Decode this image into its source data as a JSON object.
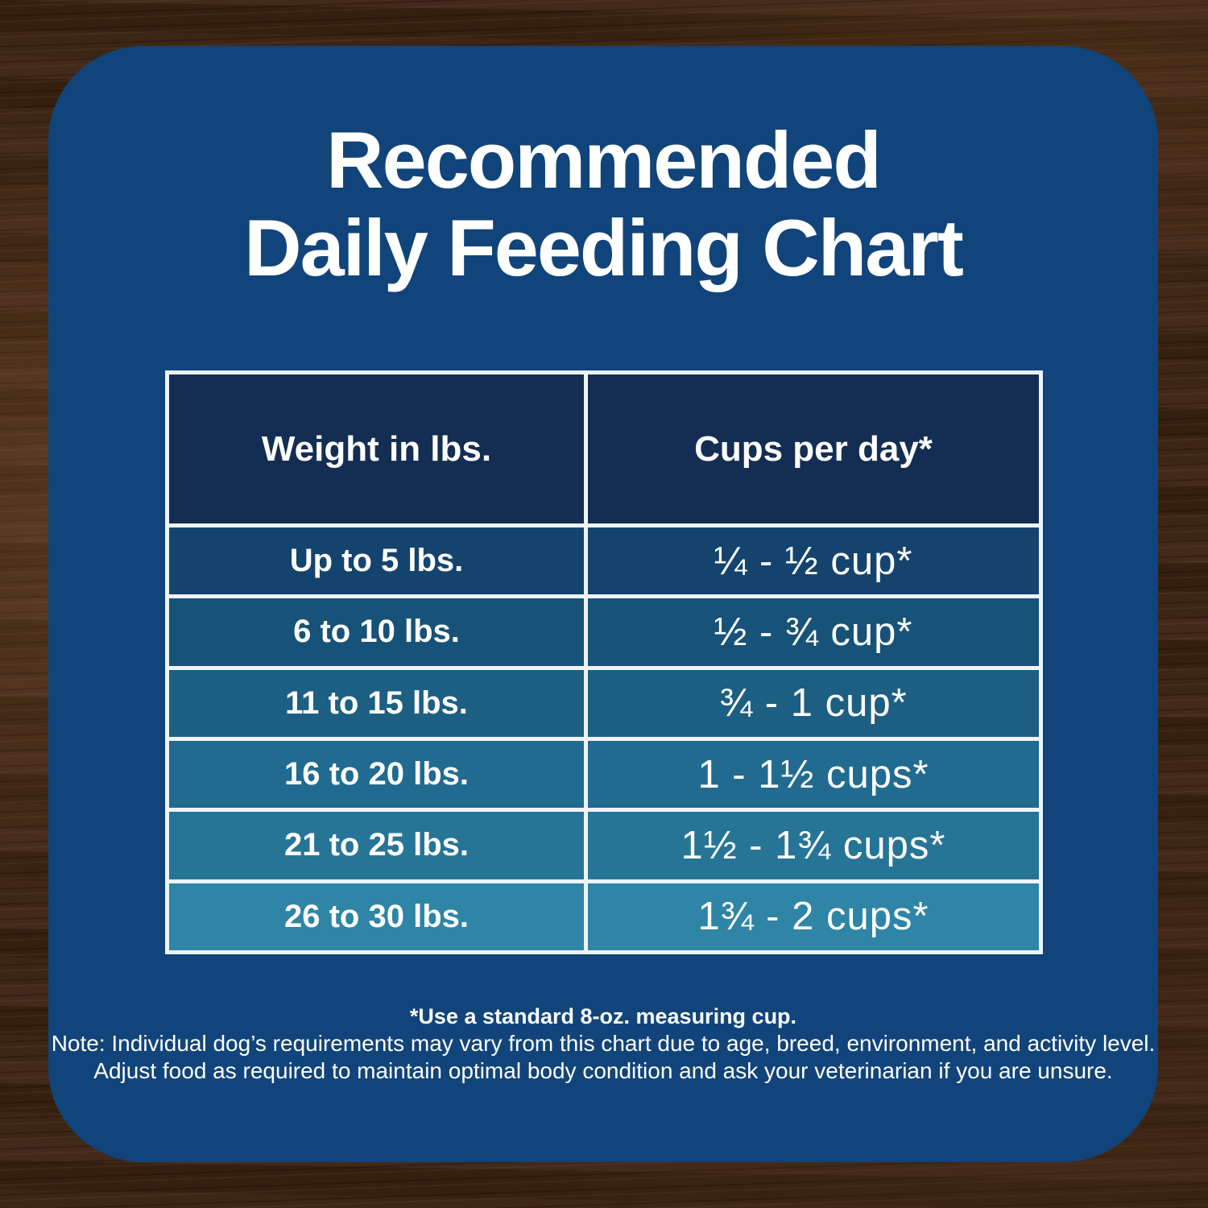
{
  "theme": {
    "card_bg": "#11447a",
    "header_bg": "#132e52",
    "row_colors": [
      "#14446e",
      "#175278",
      "#1c5f83",
      "#216b90",
      "#267597",
      "#2e85a6"
    ],
    "border_color": "#eef3f8",
    "text_color": "#ffffff",
    "wood_base": "#35200f"
  },
  "title": {
    "line1": "Recommended",
    "line2": "Daily Feeding Chart"
  },
  "table": {
    "headers": [
      "Weight in lbs.",
      "Cups per day*"
    ],
    "rows": [
      {
        "weight": "Up to 5 lbs.",
        "cups": "¼ - ½ cup*"
      },
      {
        "weight": "6 to 10 lbs.",
        "cups": "½ - ¾ cup*"
      },
      {
        "weight": "11 to 15 lbs.",
        "cups": "¾ - 1 cup*"
      },
      {
        "weight": "16 to 20 lbs.",
        "cups": "1 - 1½ cups*"
      },
      {
        "weight": "21 to 25 lbs.",
        "cups": "1½ - 1¾ cups*"
      },
      {
        "weight": "26 to 30 lbs.",
        "cups": "1¾ - 2 cups*"
      }
    ]
  },
  "footnotes": {
    "measuring": "*Use a standard 8-oz. measuring cup.",
    "note_line1": "Note: Individual dog’s requirements may vary from this chart due to age, breed, environment, and activity level.",
    "note_line2": "Adjust food as required to maintain optimal body condition and ask your veterinarian if you are unsure."
  },
  "chart_data": {
    "type": "table",
    "title": "Recommended Daily Feeding Chart",
    "columns": [
      "Weight in lbs.",
      "Cups per day*"
    ],
    "rows": [
      [
        "Up to 5 lbs.",
        "¼ - ½ cup*"
      ],
      [
        "6 to 10 lbs.",
        "½ - ¾ cup*"
      ],
      [
        "11 to 15 lbs.",
        "¾ - 1 cup*"
      ],
      [
        "16 to 20 lbs.",
        "1 - 1½ cups*"
      ],
      [
        "21 to 25 lbs.",
        "1½ - 1¾ cups*"
      ],
      [
        "26 to 30 lbs.",
        "1¾ - 2 cups*"
      ]
    ],
    "weight_ranges_lbs": [
      [
        0,
        5
      ],
      [
        6,
        10
      ],
      [
        11,
        15
      ],
      [
        16,
        20
      ],
      [
        21,
        25
      ],
      [
        26,
        30
      ]
    ],
    "cups_ranges": [
      [
        0.25,
        0.5
      ],
      [
        0.5,
        0.75
      ],
      [
        0.75,
        1
      ],
      [
        1,
        1.5
      ],
      [
        1.5,
        1.75
      ],
      [
        1.75,
        2
      ]
    ],
    "footnote": "*Use a standard 8-oz. measuring cup."
  }
}
